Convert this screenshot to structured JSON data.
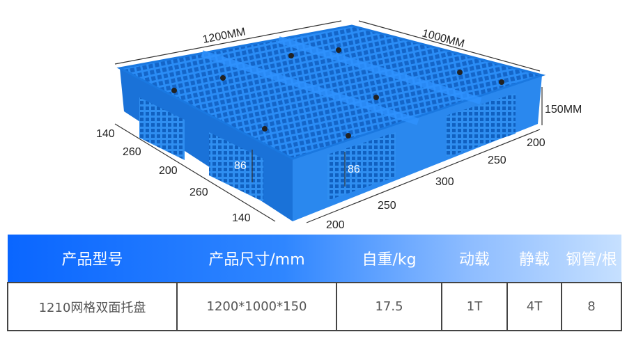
{
  "diagram": {
    "length_label": "1200MM",
    "width_label": "1000MM",
    "height_label": "150MM",
    "left_segments": [
      "140",
      "260",
      "200",
      "260",
      "140"
    ],
    "right_segments": [
      "200",
      "250",
      "300",
      "250",
      "200"
    ],
    "opening_height_left": "86",
    "opening_height_right": "86",
    "pallet_color": "#1f7de8"
  },
  "table": {
    "headers": [
      "产品型号",
      "产品尺寸/mm",
      "自重/kg",
      "动载",
      "静载",
      "钢管/根"
    ],
    "row": [
      "1210网格双面托盘",
      "1200*1000*150",
      "17.5",
      "1T",
      "4T",
      "8"
    ],
    "header_gradient": [
      "#0a66ff",
      "#c6e0ff"
    ]
  }
}
